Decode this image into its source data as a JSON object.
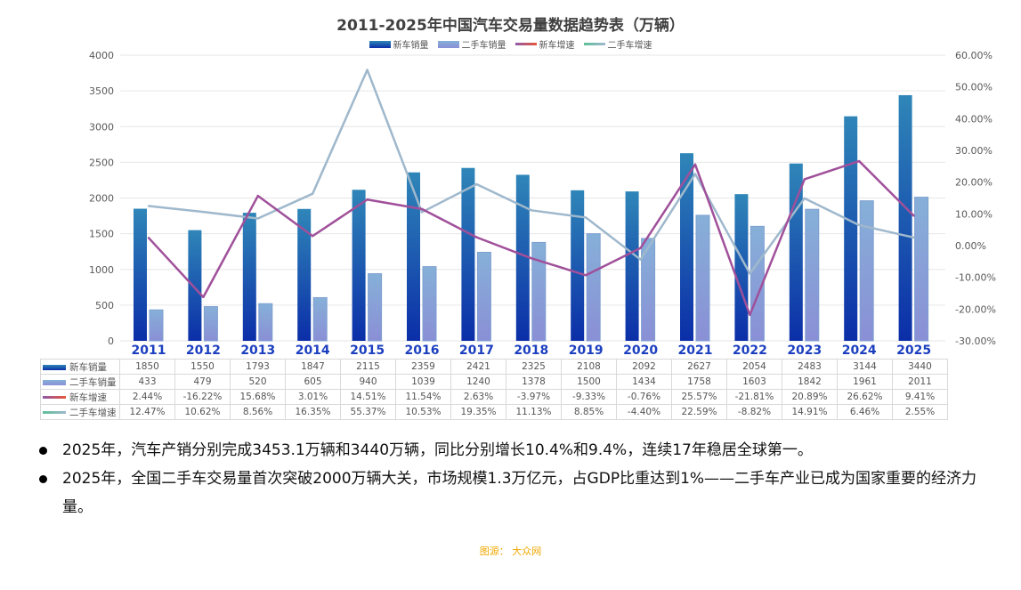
{
  "chart_data": {
    "type": "bar",
    "title": "2011-2025年中国汽车交易量数据趋势表（万辆）",
    "categories": [
      "2011",
      "2012",
      "2013",
      "2014",
      "2015",
      "2016",
      "2017",
      "2018",
      "2019",
      "2020",
      "2021",
      "2022",
      "2023",
      "2024",
      "2025"
    ],
    "series": [
      {
        "name": "新车销量",
        "type": "bar",
        "axis": "left",
        "color": "#1f5fa8",
        "values": [
          1850,
          1550,
          1793,
          1847,
          2115,
          2359,
          2421,
          2325,
          2108,
          2092,
          2627,
          2054,
          2483,
          3144,
          3440
        ],
        "labels": [
          "1850",
          "1550",
          "1793",
          "1847",
          "2115",
          "2359",
          "2421",
          "2325",
          "2108",
          "2092",
          "2627",
          "2054",
          "2483",
          "3144",
          "3440"
        ]
      },
      {
        "name": "二手车销量",
        "type": "bar",
        "axis": "left",
        "color": "#8aa6d8",
        "values": [
          433,
          479,
          520,
          605,
          940,
          1039,
          1240,
          1378,
          1500,
          1434,
          1758,
          1603,
          1842,
          1961,
          2011
        ],
        "labels": [
          "433",
          "479",
          "520",
          "605",
          "940",
          "1039",
          "1240",
          "1378",
          "1500",
          "1434",
          "1758",
          "1603",
          "1842",
          "1961",
          "2011"
        ]
      },
      {
        "name": "新车增速",
        "type": "line",
        "axis": "right",
        "color": "#d9534f",
        "values": [
          2.44,
          -16.22,
          15.68,
          3.01,
          14.51,
          11.54,
          2.63,
          -3.97,
          -9.33,
          -0.76,
          25.57,
          -21.81,
          20.89,
          26.62,
          9.41
        ],
        "labels": [
          "2.44%",
          "-16.22%",
          "15.68%",
          "3.01%",
          "14.51%",
          "11.54%",
          "2.63%",
          "-3.97%",
          "-9.33%",
          "-0.76%",
          "25.57%",
          "-21.81%",
          "20.89%",
          "26.62%",
          "9.41%"
        ]
      },
      {
        "name": "二手车增速",
        "type": "line",
        "axis": "right",
        "color": "#5cbf98",
        "values": [
          12.47,
          10.62,
          8.56,
          16.35,
          55.37,
          10.53,
          19.35,
          11.13,
          8.85,
          -4.4,
          22.59,
          -8.82,
          14.91,
          6.46,
          2.55
        ],
        "labels": [
          "12.47%",
          "10.62%",
          "8.56%",
          "16.35%",
          "55.37%",
          "10.53%",
          "19.35%",
          "11.13%",
          "8.85%",
          "-4.40%",
          "22.59%",
          "-8.82%",
          "14.91%",
          "6.46%",
          "2.55%"
        ]
      }
    ],
    "ylim": [
      0,
      4000
    ],
    "yticks": [
      "0",
      "500",
      "1000",
      "1500",
      "2000",
      "2500",
      "3000",
      "3500",
      "4000"
    ],
    "y2lim": [
      -30,
      60
    ],
    "y2ticks": [
      "-30.00%",
      "-20.00%",
      "-10.00%",
      "0.00%",
      "10.00%",
      "20.00%",
      "30.00%",
      "40.00%",
      "50.00%",
      "60.00%"
    ],
    "legend": "top"
  },
  "bullets": [
    "2025年，汽车产销分别完成3453.1万辆和3440万辆，同比分别增长10.4%和9.4%，连续17年稳居全球第一。",
    "2025年，全国二手车交易量首次突破2000万辆大关，市场规模1.3万亿元，占GDP比重达到1%——二手车产业已成为国家重要的经济力量。"
  ],
  "source": "图源： 大众网"
}
